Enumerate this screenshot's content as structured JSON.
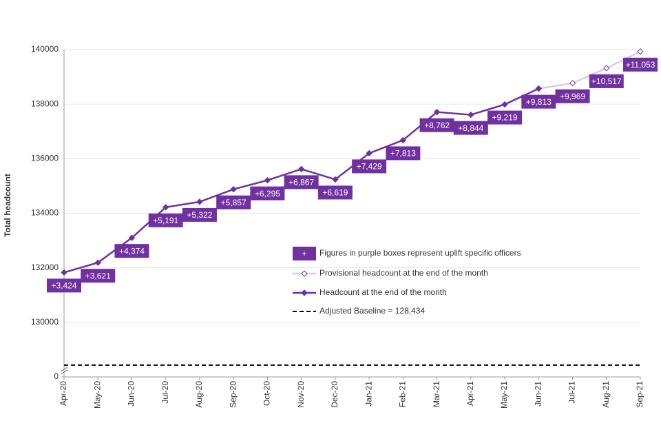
{
  "chart_data": {
    "type": "line",
    "y_label": "Total headcount",
    "categories": [
      "Apr-20",
      "May-20",
      "Jun-20",
      "Jul-20",
      "Aug-20",
      "Sep-20",
      "Oct-20",
      "Nov-20",
      "Dec-20",
      "Jan-21",
      "Feb-21",
      "Mar-21",
      "Apr-21",
      "May-21",
      "Jun-21",
      "Jul-21",
      "Aug-21",
      "Sep-21"
    ],
    "ylim": [
      128000,
      140000
    ],
    "yticks": [
      {
        "value": 128000,
        "label": "0"
      },
      130000,
      132000,
      134000,
      136000,
      138000,
      140000
    ],
    "grid": true,
    "series": [
      {
        "name": "Provisional headcount at the end of the month",
        "color": "#dcc9ea",
        "values": [
          null,
          null,
          null,
          null,
          null,
          null,
          null,
          null,
          null,
          null,
          null,
          null,
          null,
          null,
          138570,
          138770,
          139320,
          139930
        ]
      },
      {
        "name": "Headcount at the end of the month",
        "color": "#7030a0",
        "values": [
          131830,
          132190,
          133100,
          134220,
          134420,
          134880,
          135210,
          135620,
          135240,
          136200,
          136680,
          137710,
          137610,
          137990,
          138570,
          null,
          null,
          null
        ]
      }
    ],
    "uplift": {
      "name": "Figures in purple boxes represent uplift specific officers",
      "legend_symbol": "+",
      "color": "#7030a0",
      "values": [
        3424,
        3621,
        4374,
        5191,
        5322,
        5857,
        6295,
        6867,
        6619,
        7429,
        7813,
        8762,
        8844,
        9219,
        9813,
        9969,
        10517,
        11053
      ],
      "value_labels": [
        "+3,424",
        "+3,621",
        "+4,374",
        "+5,191",
        "+5,322",
        "+5,857",
        "+6,295",
        "+6,867",
        "+6,619",
        "+7,429",
        "+7,813",
        "+8,762",
        "+8,844",
        "+9,219",
        "+9,813",
        "+9,969",
        "+10,517",
        "+11,053"
      ]
    },
    "baseline": {
      "name": "Adjusted Baseline = 128,434",
      "value": 128434,
      "color": "#000000"
    }
  }
}
